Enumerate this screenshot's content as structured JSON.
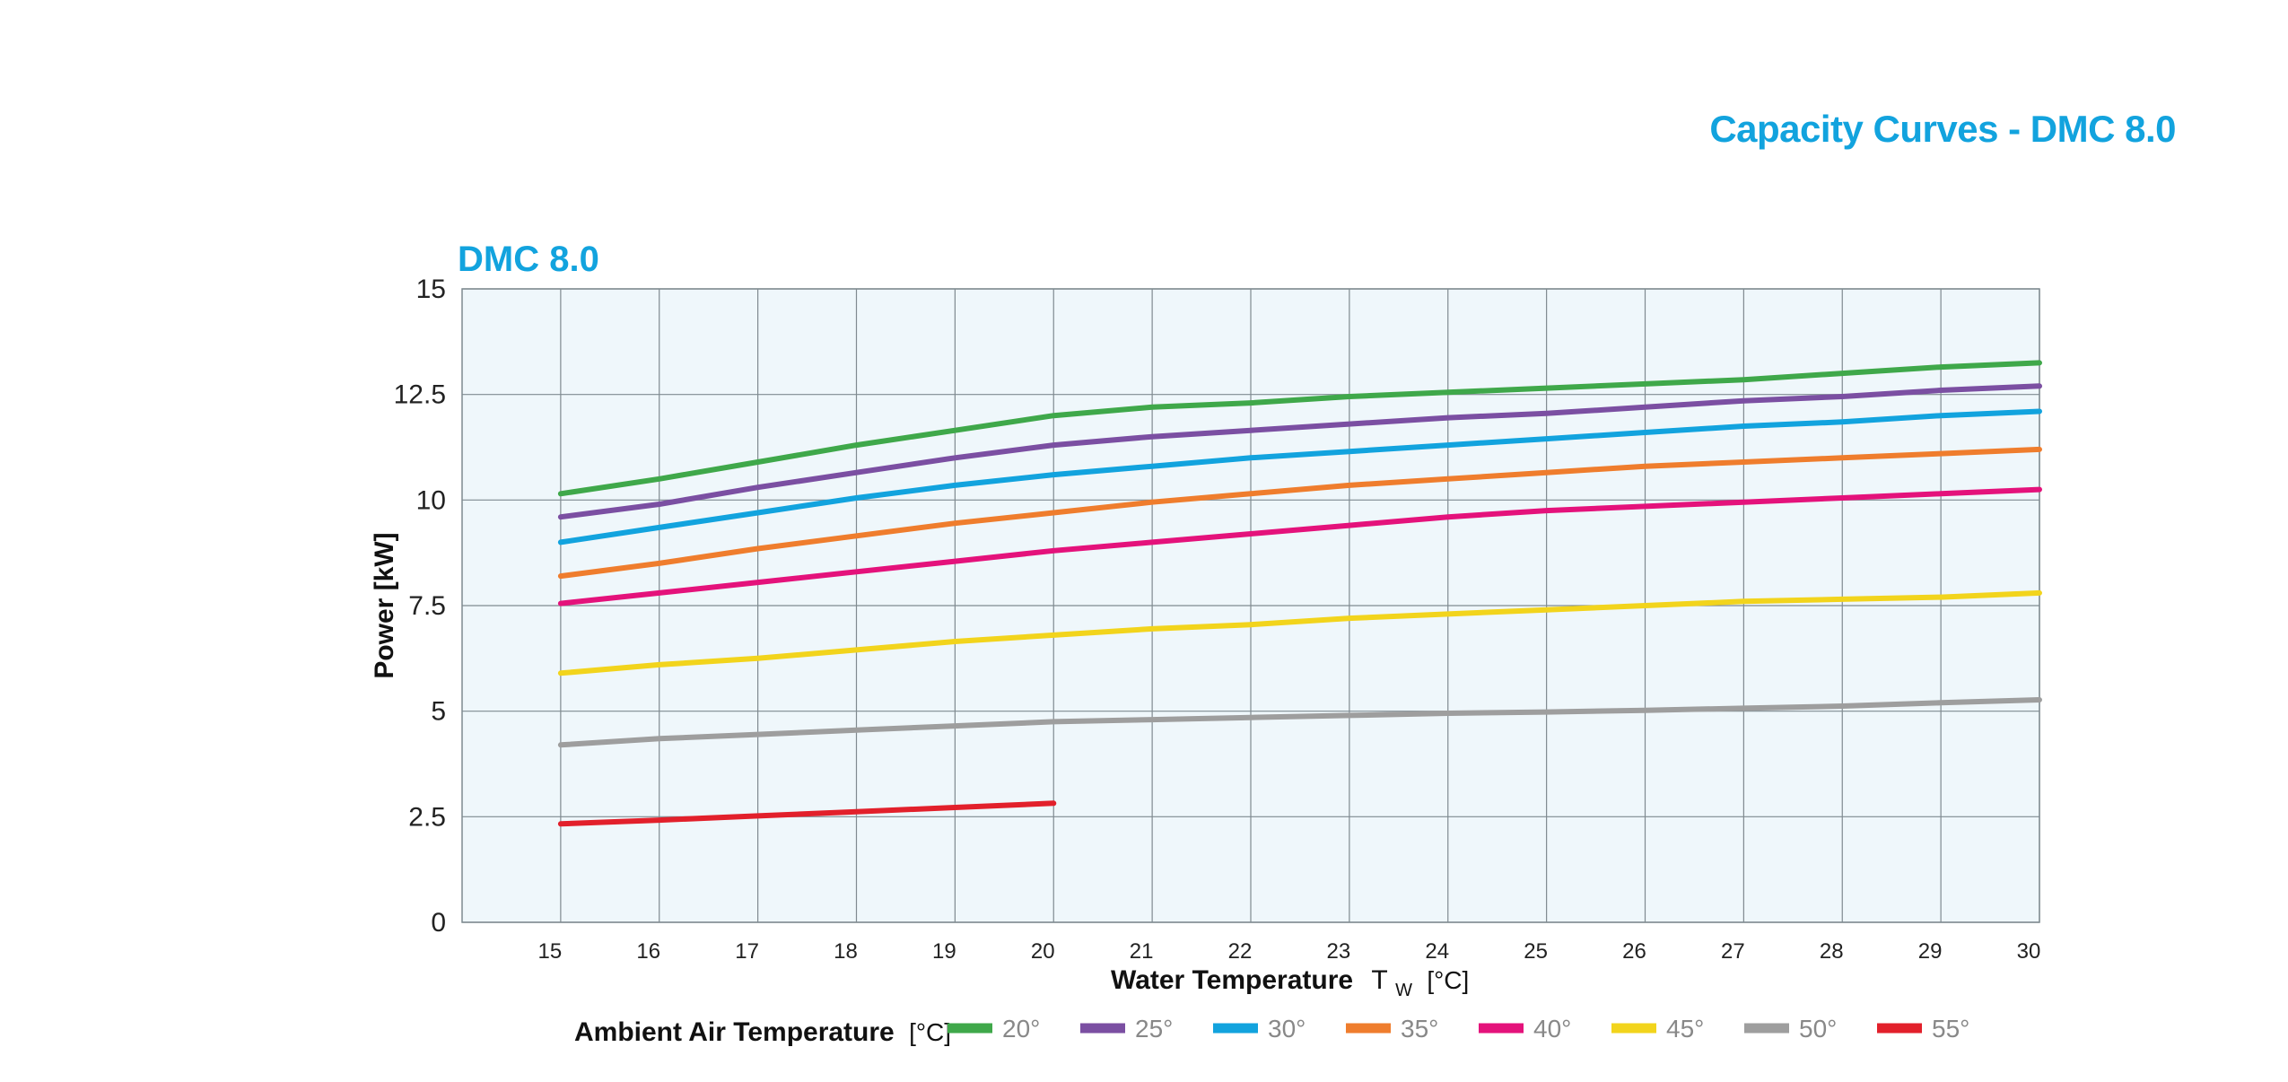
{
  "page_title": "Capacity Curves - DMC 8.0",
  "chart_data": {
    "type": "line",
    "title": "DMC 8.0",
    "xlabel": "Water Temperature",
    "xlabel_symbol": "T",
    "xlabel_subscript": "W",
    "xlabel_unit": "[°C]",
    "ylabel": "Power [kW]",
    "xlim": [
      14,
      30
    ],
    "ylim": [
      0,
      15
    ],
    "x_ticks": [
      "15",
      "16",
      "17",
      "18",
      "19",
      "20",
      "21",
      "22",
      "23",
      "24",
      "25",
      "26",
      "27",
      "28",
      "29",
      "30"
    ],
    "y_ticks": [
      "0",
      "2.5",
      "5",
      "7.5",
      "10",
      "12.5",
      "15"
    ],
    "grid": true,
    "legend": {
      "title": "Ambient Air Temperature",
      "unit": "[°C]",
      "placement": "bottom"
    },
    "series": [
      {
        "name": "20°",
        "color": "#3fa84a",
        "x": [
          15,
          16,
          17,
          18,
          19,
          20,
          21,
          22,
          23,
          24,
          25,
          26,
          27,
          28,
          29,
          30
        ],
        "values": [
          10.15,
          10.5,
          10.9,
          11.3,
          11.65,
          12.0,
          12.2,
          12.3,
          12.45,
          12.55,
          12.65,
          12.75,
          12.85,
          13.0,
          13.15,
          13.25
        ]
      },
      {
        "name": "25°",
        "color": "#7b4fa2",
        "x": [
          15,
          16,
          17,
          18,
          19,
          20,
          21,
          22,
          23,
          24,
          25,
          26,
          27,
          28,
          29,
          30
        ],
        "values": [
          9.6,
          9.9,
          10.3,
          10.65,
          11.0,
          11.3,
          11.5,
          11.65,
          11.8,
          11.95,
          12.05,
          12.2,
          12.35,
          12.45,
          12.6,
          12.7
        ]
      },
      {
        "name": "30°",
        "color": "#12a3de",
        "x": [
          15,
          16,
          17,
          18,
          19,
          20,
          21,
          22,
          23,
          24,
          25,
          26,
          27,
          28,
          29,
          30
        ],
        "values": [
          9.0,
          9.35,
          9.7,
          10.05,
          10.35,
          10.6,
          10.8,
          11.0,
          11.15,
          11.3,
          11.45,
          11.6,
          11.75,
          11.85,
          12.0,
          12.1
        ]
      },
      {
        "name": "35°",
        "color": "#ef7d2d",
        "x": [
          15,
          16,
          17,
          18,
          19,
          20,
          21,
          22,
          23,
          24,
          25,
          26,
          27,
          28,
          29,
          30
        ],
        "values": [
          8.2,
          8.5,
          8.85,
          9.15,
          9.45,
          9.7,
          9.95,
          10.15,
          10.35,
          10.5,
          10.65,
          10.8,
          10.9,
          11.0,
          11.1,
          11.2
        ]
      },
      {
        "name": "40°",
        "color": "#e4127b",
        "x": [
          15,
          16,
          17,
          18,
          19,
          20,
          21,
          22,
          23,
          24,
          25,
          26,
          27,
          28,
          29,
          30
        ],
        "values": [
          7.55,
          7.8,
          8.05,
          8.3,
          8.55,
          8.8,
          9.0,
          9.2,
          9.4,
          9.6,
          9.75,
          9.85,
          9.95,
          10.05,
          10.15,
          10.25
        ]
      },
      {
        "name": "45°",
        "color": "#f2d41c",
        "x": [
          15,
          16,
          17,
          18,
          19,
          20,
          21,
          22,
          23,
          24,
          25,
          26,
          27,
          28,
          29,
          30
        ],
        "values": [
          5.9,
          6.1,
          6.25,
          6.45,
          6.65,
          6.8,
          6.95,
          7.05,
          7.2,
          7.3,
          7.4,
          7.5,
          7.6,
          7.65,
          7.7,
          7.8
        ]
      },
      {
        "name": "50°",
        "color": "#9e9e9e",
        "x": [
          15,
          16,
          17,
          18,
          19,
          20,
          21,
          22,
          23,
          24,
          25,
          26,
          27,
          28,
          29,
          30
        ],
        "values": [
          4.2,
          4.35,
          4.45,
          4.55,
          4.65,
          4.75,
          4.8,
          4.85,
          4.9,
          4.95,
          4.98,
          5.02,
          5.07,
          5.12,
          5.2,
          5.27
        ]
      },
      {
        "name": "55°",
        "color": "#e2202b",
        "x": [
          15,
          16,
          17,
          18,
          19,
          20
        ],
        "values": [
          2.33,
          2.42,
          2.52,
          2.62,
          2.72,
          2.82
        ]
      }
    ]
  }
}
